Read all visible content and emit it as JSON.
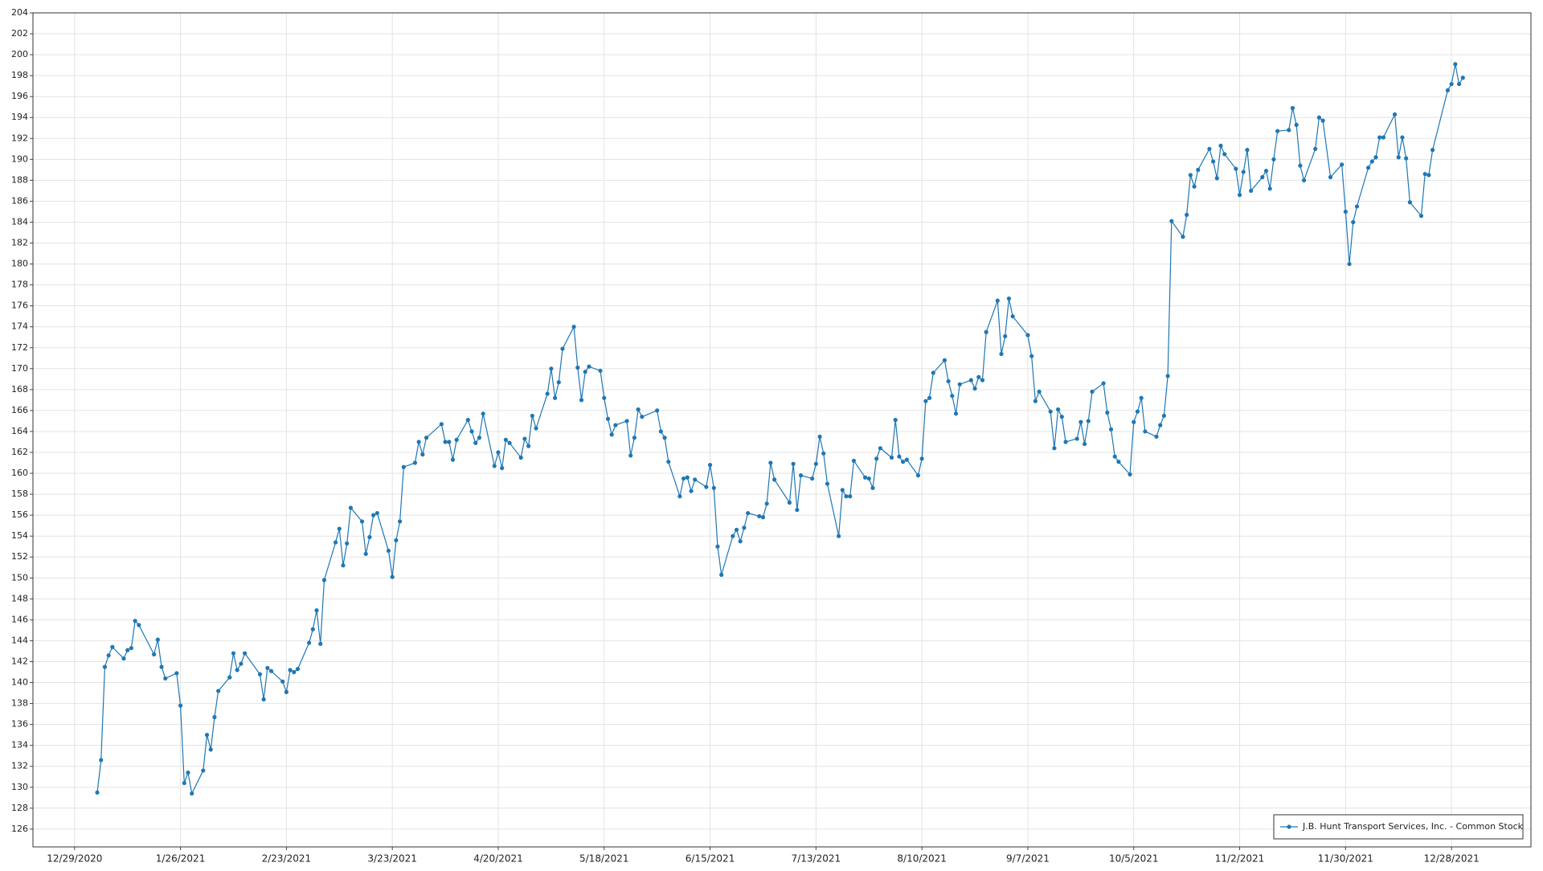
{
  "chart_data": {
    "type": "line",
    "x": [
      "2021-01-04",
      "2021-01-05",
      "2021-01-06",
      "2021-01-07",
      "2021-01-08",
      "2021-01-11",
      "2021-01-12",
      "2021-01-13",
      "2021-01-14",
      "2021-01-15",
      "2021-01-19",
      "2021-01-20",
      "2021-01-21",
      "2021-01-22",
      "2021-01-25",
      "2021-01-26",
      "2021-01-27",
      "2021-01-28",
      "2021-01-29",
      "2021-02-01",
      "2021-02-02",
      "2021-02-03",
      "2021-02-04",
      "2021-02-05",
      "2021-02-08",
      "2021-02-09",
      "2021-02-10",
      "2021-02-11",
      "2021-02-12",
      "2021-02-16",
      "2021-02-17",
      "2021-02-18",
      "2021-02-19",
      "2021-02-22",
      "2021-02-23",
      "2021-02-24",
      "2021-02-25",
      "2021-02-26",
      "2021-03-01",
      "2021-03-02",
      "2021-03-03",
      "2021-03-04",
      "2021-03-05",
      "2021-03-08",
      "2021-03-09",
      "2021-03-10",
      "2021-03-11",
      "2021-03-12",
      "2021-03-15",
      "2021-03-16",
      "2021-03-17",
      "2021-03-18",
      "2021-03-19",
      "2021-03-22",
      "2021-03-23",
      "2021-03-24",
      "2021-03-25",
      "2021-03-26",
      "2021-03-29",
      "2021-03-30",
      "2021-03-31",
      "2021-04-01",
      "2021-04-05",
      "2021-04-06",
      "2021-04-07",
      "2021-04-08",
      "2021-04-09",
      "2021-04-12",
      "2021-04-13",
      "2021-04-14",
      "2021-04-15",
      "2021-04-16",
      "2021-04-19",
      "2021-04-20",
      "2021-04-21",
      "2021-04-22",
      "2021-04-23",
      "2021-04-26",
      "2021-04-27",
      "2021-04-28",
      "2021-04-29",
      "2021-04-30",
      "2021-05-03",
      "2021-05-04",
      "2021-05-05",
      "2021-05-06",
      "2021-05-07",
      "2021-05-10",
      "2021-05-11",
      "2021-05-12",
      "2021-05-13",
      "2021-05-14",
      "2021-05-17",
      "2021-05-18",
      "2021-05-19",
      "2021-05-20",
      "2021-05-21",
      "2021-05-24",
      "2021-05-25",
      "2021-05-26",
      "2021-05-27",
      "2021-05-28",
      "2021-06-01",
      "2021-06-02",
      "2021-06-03",
      "2021-06-04",
      "2021-06-07",
      "2021-06-08",
      "2021-06-09",
      "2021-06-10",
      "2021-06-11",
      "2021-06-14",
      "2021-06-15",
      "2021-06-16",
      "2021-06-17",
      "2021-06-18",
      "2021-06-21",
      "2021-06-22",
      "2021-06-23",
      "2021-06-24",
      "2021-06-25",
      "2021-06-28",
      "2021-06-29",
      "2021-06-30",
      "2021-07-01",
      "2021-07-02",
      "2021-07-06",
      "2021-07-07",
      "2021-07-08",
      "2021-07-09",
      "2021-07-12",
      "2021-07-13",
      "2021-07-14",
      "2021-07-15",
      "2021-07-16",
      "2021-07-19",
      "2021-07-20",
      "2021-07-21",
      "2021-07-22",
      "2021-07-23",
      "2021-07-26",
      "2021-07-27",
      "2021-07-28",
      "2021-07-29",
      "2021-07-30",
      "2021-08-02",
      "2021-08-03",
      "2021-08-04",
      "2021-08-05",
      "2021-08-06",
      "2021-08-09",
      "2021-08-10",
      "2021-08-11",
      "2021-08-12",
      "2021-08-13",
      "2021-08-16",
      "2021-08-17",
      "2021-08-18",
      "2021-08-19",
      "2021-08-20",
      "2021-08-23",
      "2021-08-24",
      "2021-08-25",
      "2021-08-26",
      "2021-08-27",
      "2021-08-30",
      "2021-08-31",
      "2021-09-01",
      "2021-09-02",
      "2021-09-03",
      "2021-09-07",
      "2021-09-08",
      "2021-09-09",
      "2021-09-10",
      "2021-09-13",
      "2021-09-14",
      "2021-09-15",
      "2021-09-16",
      "2021-09-17",
      "2021-09-20",
      "2021-09-21",
      "2021-09-22",
      "2021-09-23",
      "2021-09-24",
      "2021-09-27",
      "2021-09-28",
      "2021-09-29",
      "2021-09-30",
      "2021-10-01",
      "2021-10-04",
      "2021-10-05",
      "2021-10-06",
      "2021-10-07",
      "2021-10-08",
      "2021-10-11",
      "2021-10-12",
      "2021-10-13",
      "2021-10-14",
      "2021-10-15",
      "2021-10-18",
      "2021-10-19",
      "2021-10-20",
      "2021-10-21",
      "2021-10-22",
      "2021-10-25",
      "2021-10-26",
      "2021-10-27",
      "2021-10-28",
      "2021-10-29",
      "2021-11-01",
      "2021-11-02",
      "2021-11-03",
      "2021-11-04",
      "2021-11-05",
      "2021-11-08",
      "2021-11-09",
      "2021-11-10",
      "2021-11-11",
      "2021-11-12",
      "2021-11-15",
      "2021-11-16",
      "2021-11-17",
      "2021-11-18",
      "2021-11-19",
      "2021-11-22",
      "2021-11-23",
      "2021-11-24",
      "2021-11-26",
      "2021-11-29",
      "2021-11-30",
      "2021-12-01",
      "2021-12-02",
      "2021-12-03",
      "2021-12-06",
      "2021-12-07",
      "2021-12-08",
      "2021-12-09",
      "2021-12-10",
      "2021-12-13",
      "2021-12-14",
      "2021-12-15",
      "2021-12-16",
      "2021-12-17",
      "2021-12-20",
      "2021-12-21",
      "2021-12-22",
      "2021-12-23",
      "2021-12-27",
      "2021-12-28",
      "2021-12-29",
      "2021-12-30",
      "2021-12-31"
    ],
    "series": [
      {
        "name": "J.B. Hunt Transport Services, Inc. - Common Stock",
        "color": "#1f77b4",
        "values": [
          129.5,
          132.6,
          141.5,
          142.6,
          143.4,
          142.3,
          143.1,
          143.3,
          145.9,
          145.5,
          142.7,
          144.1,
          141.5,
          140.4,
          140.9,
          137.8,
          130.4,
          131.4,
          129.4,
          131.6,
          135.0,
          133.6,
          136.7,
          139.2,
          140.5,
          142.8,
          141.2,
          141.8,
          142.8,
          140.8,
          138.4,
          141.4,
          141.1,
          140.1,
          139.1,
          141.2,
          141.0,
          141.3,
          143.8,
          145.1,
          146.9,
          143.7,
          149.8,
          153.4,
          154.7,
          151.2,
          153.3,
          156.7,
          155.4,
          152.3,
          153.9,
          156.0,
          156.2,
          152.6,
          150.1,
          153.6,
          155.4,
          160.6,
          161.0,
          163.0,
          161.8,
          163.4,
          164.7,
          163.0,
          163.0,
          161.3,
          163.2,
          165.1,
          164.0,
          162.9,
          163.4,
          165.7,
          160.7,
          162.0,
          160.5,
          163.2,
          162.9,
          161.5,
          163.3,
          162.6,
          165.5,
          164.3,
          167.6,
          170.0,
          167.2,
          168.7,
          171.9,
          174.0,
          170.1,
          167.0,
          169.7,
          170.2,
          169.8,
          167.2,
          165.2,
          163.7,
          164.6,
          165.0,
          161.7,
          163.4,
          166.1,
          165.4,
          166.0,
          164.0,
          163.4,
          161.1,
          157.8,
          159.5,
          159.6,
          158.3,
          159.4,
          158.7,
          160.8,
          158.6,
          153.0,
          150.3,
          154.0,
          154.6,
          153.5,
          154.8,
          156.2,
          155.9,
          155.8,
          157.1,
          161.0,
          159.4,
          157.2,
          160.9,
          156.5,
          159.8,
          159.5,
          160.9,
          163.5,
          161.9,
          159.0,
          154.0,
          158.4,
          157.8,
          157.8,
          161.2,
          159.6,
          159.5,
          158.6,
          161.4,
          162.4,
          161.5,
          165.1,
          161.6,
          161.1,
          161.3,
          159.8,
          161.4,
          166.9,
          167.2,
          169.6,
          170.8,
          168.8,
          167.4,
          165.7,
          168.5,
          168.9,
          168.1,
          169.2,
          168.9,
          173.5,
          176.5,
          171.4,
          173.1,
          176.7,
          175.0,
          173.2,
          171.2,
          166.9,
          167.8,
          165.9,
          162.4,
          166.1,
          165.4,
          163.0,
          163.3,
          164.9,
          162.8,
          165.0,
          167.8,
          168.6,
          165.8,
          164.2,
          161.6,
          161.1,
          159.9,
          164.9,
          165.9,
          167.2,
          164.0,
          163.5,
          164.6,
          165.5,
          169.3,
          184.1,
          182.6,
          184.7,
          188.5,
          187.4,
          189.0,
          191.0,
          189.8,
          188.2,
          191.3,
          190.5,
          189.1,
          186.6,
          188.8,
          190.9,
          187.0,
          188.3,
          188.9,
          187.2,
          190.0,
          192.7,
          192.8,
          194.9,
          193.3,
          189.4,
          188.0,
          191.0,
          194.0,
          193.7,
          188.3,
          189.5,
          185.0,
          180.0,
          184.0,
          185.5,
          189.2,
          189.8,
          190.2,
          192.1,
          192.1,
          194.3,
          190.2,
          192.1,
          190.1,
          185.9,
          184.6,
          188.6,
          188.5,
          190.9,
          196.6,
          197.2,
          199.1,
          197.2,
          197.8
        ]
      }
    ],
    "xlim": [
      "2020-12-18",
      "2022-01-18"
    ],
    "xticks": [
      {
        "value": "2020-12-29",
        "label": "12/29/2020"
      },
      {
        "value": "2021-01-26",
        "label": "1/26/2021"
      },
      {
        "value": "2021-02-23",
        "label": "2/23/2021"
      },
      {
        "value": "2021-03-23",
        "label": "3/23/2021"
      },
      {
        "value": "2021-04-20",
        "label": "4/20/2021"
      },
      {
        "value": "2021-05-18",
        "label": "5/18/2021"
      },
      {
        "value": "2021-06-15",
        "label": "6/15/2021"
      },
      {
        "value": "2021-07-13",
        "label": "7/13/2021"
      },
      {
        "value": "2021-08-10",
        "label": "8/10/2021"
      },
      {
        "value": "2021-09-07",
        "label": "9/7/2021"
      },
      {
        "value": "2021-10-05",
        "label": "10/5/2021"
      },
      {
        "value": "2021-11-02",
        "label": "11/2/2021"
      },
      {
        "value": "2021-11-30",
        "label": "11/30/2021"
      },
      {
        "value": "2021-12-28",
        "label": "12/28/2021"
      }
    ],
    "ylim": [
      124.3,
      204
    ],
    "yticks": [
      126,
      128,
      130,
      132,
      134,
      136,
      138,
      140,
      142,
      144,
      146,
      148,
      150,
      152,
      154,
      156,
      158,
      160,
      162,
      164,
      166,
      168,
      170,
      172,
      174,
      176,
      178,
      180,
      182,
      184,
      186,
      188,
      190,
      192,
      194,
      196,
      198,
      200,
      202,
      204
    ],
    "grid": true,
    "legend": "lower right"
  }
}
